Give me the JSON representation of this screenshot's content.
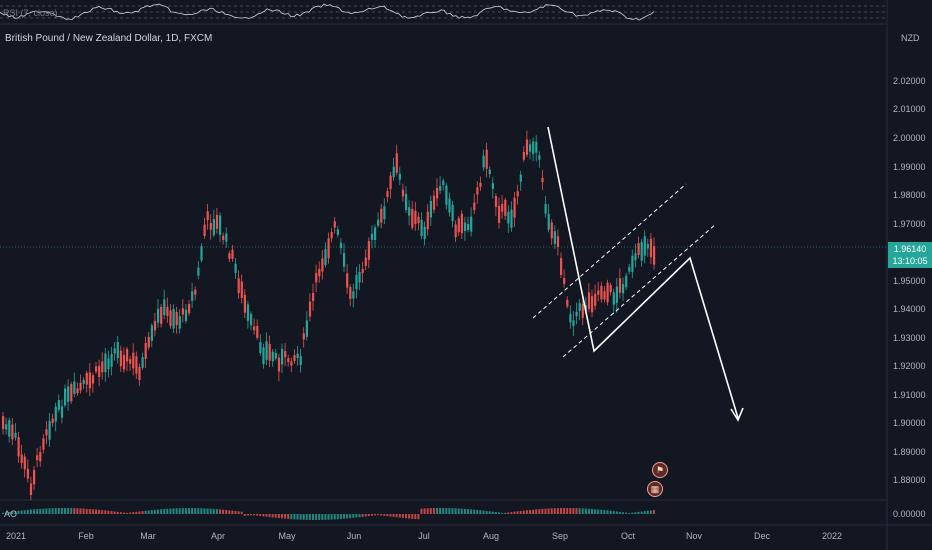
{
  "header": {
    "symbol_title": "British Pound / New Zealand Dollar, 1D, FXCM",
    "rsi_label": "RSI (7, close)",
    "ao_label": "AO",
    "currency": "NZD"
  },
  "price_badge": {
    "price": "1.96140",
    "countdown": "13:10:05"
  },
  "y_axis": {
    "ticks": [
      "2.02000",
      "2.01000",
      "2.00000",
      "1.99000",
      "1.98000",
      "1.97000",
      "1.95000",
      "1.94000",
      "1.93000",
      "1.92000",
      "1.91000",
      "1.90000",
      "1.89000",
      "1.88000"
    ],
    "ao_tick": "0.00000"
  },
  "x_axis": {
    "ticks": [
      "2021",
      "Feb",
      "Mar",
      "Apr",
      "May",
      "Jun",
      "Jul",
      "Aug",
      "Sep",
      "Oct",
      "Nov",
      "Dec",
      "2022"
    ]
  },
  "colors": {
    "background": "#131722",
    "bull": "#26a69a",
    "bear": "#ef5350",
    "drawing": "#ffffff"
  },
  "events": [
    {
      "icon": "flag-icon",
      "glyph": "⚑"
    },
    {
      "icon": "calendar-icon",
      "glyph": "▦"
    }
  ]
}
